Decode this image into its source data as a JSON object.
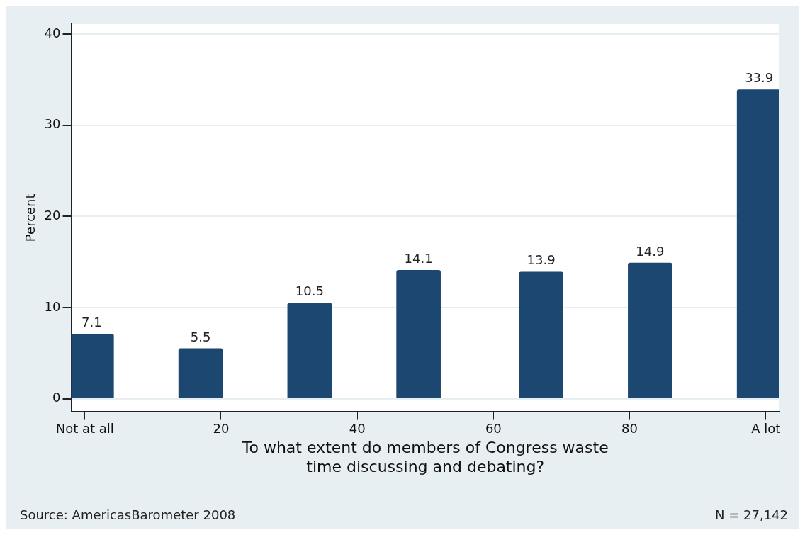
{
  "chart_data": {
    "type": "bar",
    "xlabel": "To what extent do members of Congress waste\ntime discussing and debating?",
    "ylabel": "Percent",
    "x": [
      1,
      17,
      33,
      49,
      67,
      83,
      99
    ],
    "values": [
      7.1,
      5.5,
      10.5,
      14.1,
      13.9,
      14.9,
      33.9
    ],
    "color": "#1c4770",
    "data_labels": true,
    "xlim": [
      -2,
      102
    ],
    "xticks": [
      {
        "value": 0,
        "label": "Not at all"
      },
      20,
      40,
      60,
      80,
      {
        "value": 100,
        "label": "A lot"
      }
    ],
    "ylim": [
      -1.4,
      41.1
    ],
    "yticks": [
      0,
      10,
      20,
      30,
      40
    ],
    "grid": "y",
    "annotations": [
      "Source: AmericasBarometer 2008",
      "N = 27,142"
    ]
  }
}
